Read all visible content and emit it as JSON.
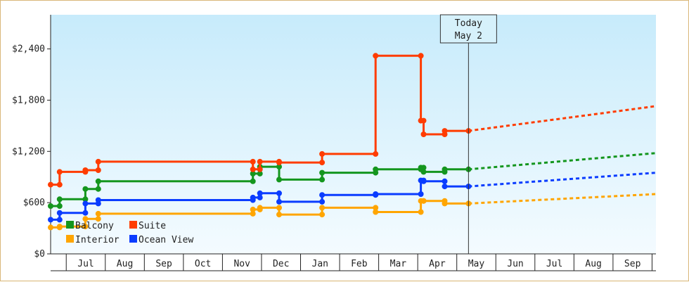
{
  "chart_data": {
    "type": "line",
    "title": "",
    "xlabel": "",
    "ylabel": "",
    "ylim": [
      0,
      2800
    ],
    "y_ticks": [
      "$0",
      "$600",
      "$1,200",
      "$1,800",
      "$2,400"
    ],
    "y_tick_values": [
      0,
      600,
      1200,
      1800,
      2400
    ],
    "x_months": [
      "Jul",
      "Aug",
      "Sep",
      "Oct",
      "Nov",
      "Dec",
      "Jan",
      "Feb",
      "Mar",
      "Apr",
      "May",
      "Jun",
      "Jul",
      "Aug",
      "Sep"
    ],
    "x_domain": [
      -0.4,
      15.1
    ],
    "today": {
      "label_line1": "Today",
      "label_line2": "May 2",
      "x": 10.3
    },
    "interpolation": "step",
    "legend": {
      "placement": "bottom-left"
    },
    "colors": {
      "Balcony": "#14961e",
      "Suite": "#ff3c00",
      "Interior": "#ffa500",
      "Ocean View": "#0a3cff"
    },
    "series": [
      {
        "name": "Balcony",
        "points": [
          [
            -0.4,
            560
          ],
          [
            -0.17,
            560
          ],
          [
            -0.17,
            640
          ],
          [
            0.49,
            640
          ],
          [
            0.49,
            760
          ],
          [
            0.82,
            760
          ],
          [
            0.82,
            850
          ],
          [
            4.78,
            850
          ],
          [
            4.78,
            940
          ],
          [
            4.96,
            940
          ],
          [
            4.96,
            1020
          ],
          [
            5.45,
            1020
          ],
          [
            5.45,
            870
          ],
          [
            6.55,
            870
          ],
          [
            6.55,
            950
          ],
          [
            7.92,
            950
          ],
          [
            7.92,
            990
          ],
          [
            9.08,
            990
          ],
          [
            9.08,
            1010
          ],
          [
            9.15,
            1010
          ],
          [
            9.15,
            960
          ],
          [
            9.69,
            960
          ],
          [
            9.69,
            990
          ],
          [
            10.3,
            990
          ]
        ],
        "forecast": [
          [
            10.3,
            990
          ],
          [
            15.1,
            1180
          ]
        ]
      },
      {
        "name": "Suite",
        "points": [
          [
            -0.4,
            810
          ],
          [
            -0.17,
            810
          ],
          [
            -0.17,
            960
          ],
          [
            0.49,
            960
          ],
          [
            0.49,
            980
          ],
          [
            0.82,
            980
          ],
          [
            0.82,
            1080
          ],
          [
            4.78,
            1080
          ],
          [
            4.78,
            990
          ],
          [
            4.96,
            990
          ],
          [
            4.96,
            1080
          ],
          [
            5.45,
            1080
          ],
          [
            5.45,
            1070
          ],
          [
            6.55,
            1070
          ],
          [
            6.55,
            1170
          ],
          [
            7.92,
            1170
          ],
          [
            7.92,
            2320
          ],
          [
            9.08,
            2320
          ],
          [
            9.08,
            1560
          ],
          [
            9.15,
            1560
          ],
          [
            9.15,
            1400
          ],
          [
            9.69,
            1400
          ],
          [
            9.69,
            1440
          ],
          [
            10.3,
            1440
          ]
        ],
        "forecast": [
          [
            10.3,
            1440
          ],
          [
            15.1,
            1730
          ]
        ]
      },
      {
        "name": "Interior",
        "points": [
          [
            -0.4,
            310
          ],
          [
            -0.17,
            310
          ],
          [
            -0.17,
            320
          ],
          [
            0.49,
            320
          ],
          [
            0.49,
            410
          ],
          [
            0.82,
            410
          ],
          [
            0.82,
            470
          ],
          [
            4.78,
            470
          ],
          [
            4.78,
            520
          ],
          [
            4.96,
            520
          ],
          [
            4.96,
            540
          ],
          [
            5.45,
            540
          ],
          [
            5.45,
            460
          ],
          [
            6.55,
            460
          ],
          [
            6.55,
            540
          ],
          [
            7.92,
            540
          ],
          [
            7.92,
            490
          ],
          [
            9.08,
            490
          ],
          [
            9.08,
            620
          ],
          [
            9.15,
            620
          ],
          [
            9.15,
            620
          ],
          [
            9.69,
            620
          ],
          [
            9.69,
            590
          ],
          [
            10.3,
            590
          ]
        ],
        "forecast": [
          [
            10.3,
            590
          ],
          [
            15.1,
            700
          ]
        ]
      },
      {
        "name": "Ocean View",
        "points": [
          [
            -0.4,
            400
          ],
          [
            -0.17,
            400
          ],
          [
            -0.17,
            480
          ],
          [
            0.49,
            480
          ],
          [
            0.49,
            590
          ],
          [
            0.82,
            590
          ],
          [
            0.82,
            630
          ],
          [
            4.78,
            630
          ],
          [
            4.78,
            660
          ],
          [
            4.96,
            660
          ],
          [
            4.96,
            710
          ],
          [
            5.45,
            710
          ],
          [
            5.45,
            610
          ],
          [
            6.55,
            610
          ],
          [
            6.55,
            690
          ],
          [
            7.92,
            690
          ],
          [
            7.92,
            700
          ],
          [
            9.08,
            700
          ],
          [
            9.08,
            860
          ],
          [
            9.15,
            860
          ],
          [
            9.15,
            850
          ],
          [
            9.69,
            850
          ],
          [
            9.69,
            790
          ],
          [
            10.3,
            790
          ]
        ],
        "forecast": [
          [
            10.3,
            790
          ],
          [
            15.1,
            950
          ]
        ]
      }
    ],
    "legend_order": [
      "Balcony",
      "Suite",
      "Interior",
      "Ocean View"
    ]
  }
}
